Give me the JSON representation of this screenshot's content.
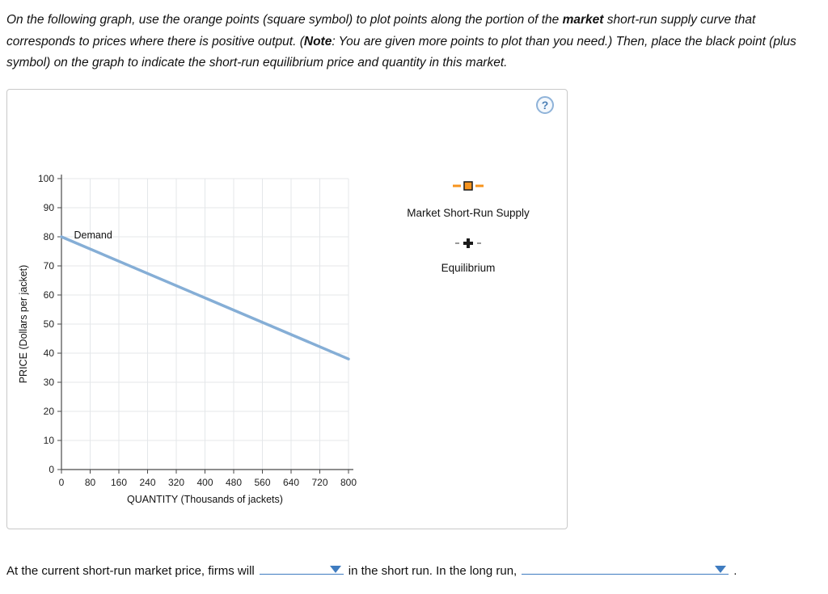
{
  "instructions": {
    "part1": "On the following graph, use the orange points (square symbol) to plot points along the portion of the ",
    "bold1": "market",
    "part2": " short-run supply curve that corresponds to prices where there is positive output. (",
    "bold2": "Note",
    "part3": ": You are given more points to plot than you need.) Then, place the black point (plus symbol) on the graph to indicate the short-run equilibrium price and quantity in this market."
  },
  "help": {
    "label": "?"
  },
  "chart_data": {
    "type": "line",
    "xlabel": "QUANTITY (Thousands of jackets)",
    "ylabel": "PRICE (Dollars per jacket)",
    "xlim": [
      0,
      800
    ],
    "ylim": [
      0,
      100
    ],
    "xticks": [
      0,
      80,
      160,
      240,
      320,
      400,
      480,
      560,
      640,
      720,
      800
    ],
    "yticks": [
      0,
      10,
      20,
      30,
      40,
      50,
      60,
      70,
      80,
      90,
      100
    ],
    "grid": true,
    "legend_position": "right",
    "series": [
      {
        "name": "Demand",
        "color": "#85aed6",
        "points": [
          [
            0,
            80
          ],
          [
            800,
            38
          ]
        ]
      }
    ],
    "annotations": [
      {
        "text": "Demand",
        "x": 35,
        "y": 79.5
      }
    ]
  },
  "legend": {
    "supply_label": "Market Short-Run Supply",
    "equilibrium_label": "Equilibrium"
  },
  "colors": {
    "supply_orange": "#f7941e",
    "equilibrium_black": "#1a1a1a",
    "dash_gray": "#9a9a9a",
    "accent_blue": "#3f7cc0"
  },
  "bottom": {
    "part1": "At the current short-run market price, firms will",
    "part2": "in the short run. In the long run,",
    "part3": "."
  }
}
